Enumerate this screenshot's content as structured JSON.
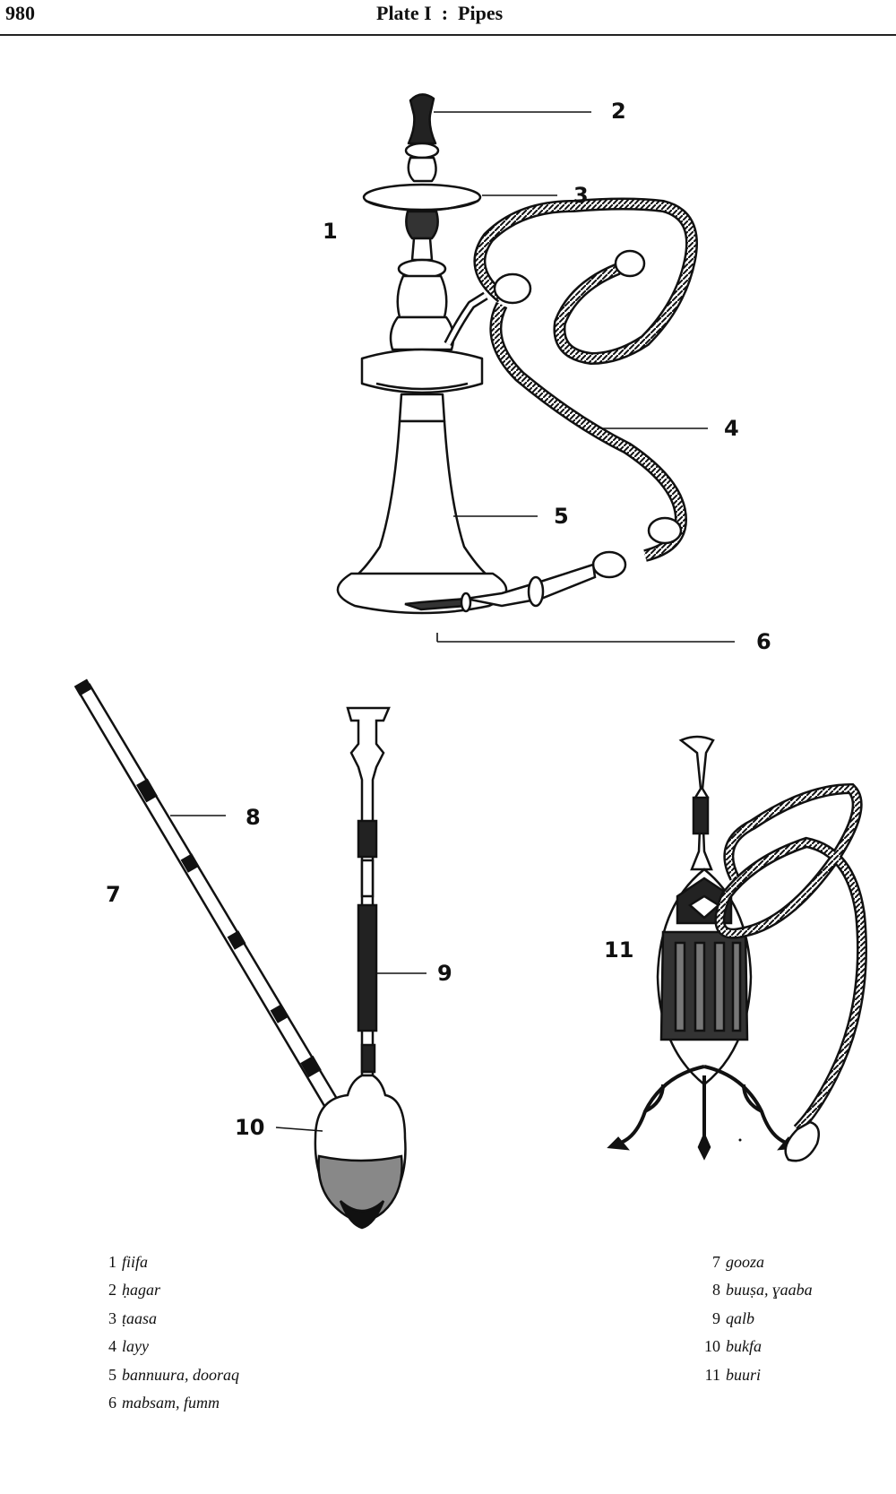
{
  "header": {
    "page_number": "980",
    "plate_title": "Plate I  :  Pipes"
  },
  "figure_labels": {
    "n1": "1",
    "n2": "2",
    "n3": "3",
    "n4": "4",
    "n5": "5",
    "n6": "6",
    "n7": "7",
    "n8": "8",
    "n9": "9",
    "n10": "10",
    "n11": "11"
  },
  "legend_left": [
    {
      "num": "1",
      "term": "fiifa"
    },
    {
      "num": "2",
      "term": "ḥagar"
    },
    {
      "num": "3",
      "term": "ṭaasa"
    },
    {
      "num": "4",
      "term": "layy"
    },
    {
      "num": "5",
      "term": "bannuura, dooraq"
    },
    {
      "num": "6",
      "term": "mabsam, fumm"
    }
  ],
  "legend_right": [
    {
      "num": "7",
      "term": "gooza"
    },
    {
      "num": "8",
      "term": "buuṣa, ɣaaba"
    },
    {
      "num": "9",
      "term": "qalb"
    },
    {
      "num": "10",
      "term": "bukfa"
    },
    {
      "num": "11",
      "term": "buuri"
    }
  ]
}
